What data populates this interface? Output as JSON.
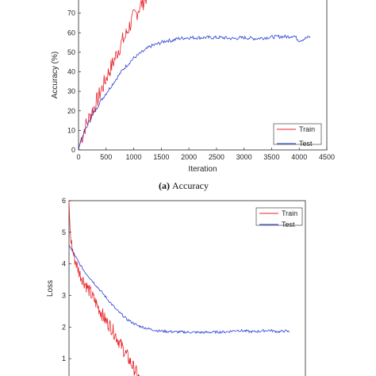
{
  "chart_data": [
    {
      "type": "line",
      "caption_label": "(a)",
      "caption_text": "Accuracy",
      "xlabel": "Iteration",
      "ylabel": "Accuracy (%)",
      "xlim": [
        0,
        4500
      ],
      "ylim": [
        0,
        80
      ],
      "x_ticks": [
        0,
        500,
        1000,
        1500,
        2000,
        2500,
        3000,
        3500,
        4000,
        4500
      ],
      "y_ticks": [
        0,
        10,
        20,
        30,
        40,
        50,
        60,
        70
      ],
      "legend_position": "bottom-right",
      "grid": false,
      "series": [
        {
          "name": "Train",
          "color": "#e8232a",
          "points": [
            [
              0,
              0
            ],
            [
              40,
              5
            ],
            [
              80,
              8
            ],
            [
              120,
              12
            ],
            [
              160,
              14
            ],
            [
              200,
              17
            ],
            [
              250,
              20
            ],
            [
              300,
              23
            ],
            [
              350,
              26
            ],
            [
              400,
              30
            ],
            [
              450,
              33
            ],
            [
              500,
              37
            ],
            [
              550,
              40
            ],
            [
              600,
              43
            ],
            [
              650,
              46
            ],
            [
              700,
              50
            ],
            [
              750,
              53
            ],
            [
              800,
              56
            ],
            [
              850,
              58
            ],
            [
              900,
              62
            ],
            [
              950,
              65
            ],
            [
              1000,
              68
            ],
            [
              1050,
              70
            ],
            [
              1100,
              73
            ],
            [
              1150,
              75
            ],
            [
              1200,
              77
            ],
            [
              1250,
              80
            ]
          ]
        },
        {
          "name": "Test",
          "color": "#2b3fd6",
          "points": [
            [
              0,
              1
            ],
            [
              100,
              9
            ],
            [
              200,
              15
            ],
            [
              300,
              20
            ],
            [
              400,
              25
            ],
            [
              500,
              29
            ],
            [
              600,
              33
            ],
            [
              700,
              37
            ],
            [
              800,
              41
            ],
            [
              900,
              44
            ],
            [
              1000,
              47
            ],
            [
              1100,
              49
            ],
            [
              1200,
              51
            ],
            [
              1300,
              53
            ],
            [
              1400,
              54
            ],
            [
              1500,
              55
            ],
            [
              1600,
              56
            ],
            [
              1700,
              56
            ],
            [
              1800,
              57
            ],
            [
              2000,
              57.5
            ],
            [
              2200,
              57.5
            ],
            [
              2400,
              57.5
            ],
            [
              2600,
              57.5
            ],
            [
              2800,
              57
            ],
            [
              3000,
              57.5
            ],
            [
              3200,
              57
            ],
            [
              3400,
              57.5
            ],
            [
              3600,
              58
            ],
            [
              3800,
              58
            ],
            [
              3900,
              58.5
            ],
            [
              4000,
              56
            ],
            [
              4100,
              57
            ],
            [
              4200,
              58
            ]
          ]
        }
      ]
    },
    {
      "type": "line",
      "caption_label": "",
      "caption_text": "",
      "xlabel": "",
      "ylabel": "Loss",
      "xlim": [
        0,
        4500
      ],
      "ylim": [
        0,
        6
      ],
      "x_ticks": [],
      "y_ticks": [
        1,
        2,
        3,
        4,
        5,
        6
      ],
      "legend_position": "top-right",
      "grid": false,
      "series": [
        {
          "name": "Train",
          "color": "#e8232a",
          "points": [
            [
              0,
              6
            ],
            [
              20,
              5
            ],
            [
              60,
              4.5
            ],
            [
              100,
              4.2
            ],
            [
              200,
              3.7
            ],
            [
              300,
              3.4
            ],
            [
              400,
              3.1
            ],
            [
              500,
              2.8
            ],
            [
              600,
              2.5
            ],
            [
              700,
              2.2
            ],
            [
              800,
              2.0
            ],
            [
              900,
              1.7
            ],
            [
              1000,
              1.4
            ],
            [
              1100,
              1.1
            ],
            [
              1200,
              0.8
            ],
            [
              1300,
              0.5
            ],
            [
              1350,
              0.3
            ]
          ]
        },
        {
          "name": "Test",
          "color": "#2b3fd6",
          "points": [
            [
              0,
              4.6
            ],
            [
              100,
              4.3
            ],
            [
              200,
              4.0
            ],
            [
              300,
              3.75
            ],
            [
              400,
              3.55
            ],
            [
              500,
              3.35
            ],
            [
              600,
              3.15
            ],
            [
              700,
              2.95
            ],
            [
              800,
              2.75
            ],
            [
              900,
              2.55
            ],
            [
              1000,
              2.4
            ],
            [
              1100,
              2.25
            ],
            [
              1200,
              2.15
            ],
            [
              1300,
              2.05
            ],
            [
              1500,
              1.95
            ],
            [
              1700,
              1.88
            ],
            [
              2000,
              1.85
            ],
            [
              2500,
              1.83
            ],
            [
              3000,
              1.85
            ],
            [
              3200,
              1.9
            ],
            [
              3500,
              1.85
            ],
            [
              3800,
              1.9
            ],
            [
              4000,
              1.85
            ],
            [
              4100,
              1.88
            ],
            [
              4200,
              1.85
            ]
          ]
        }
      ]
    }
  ]
}
